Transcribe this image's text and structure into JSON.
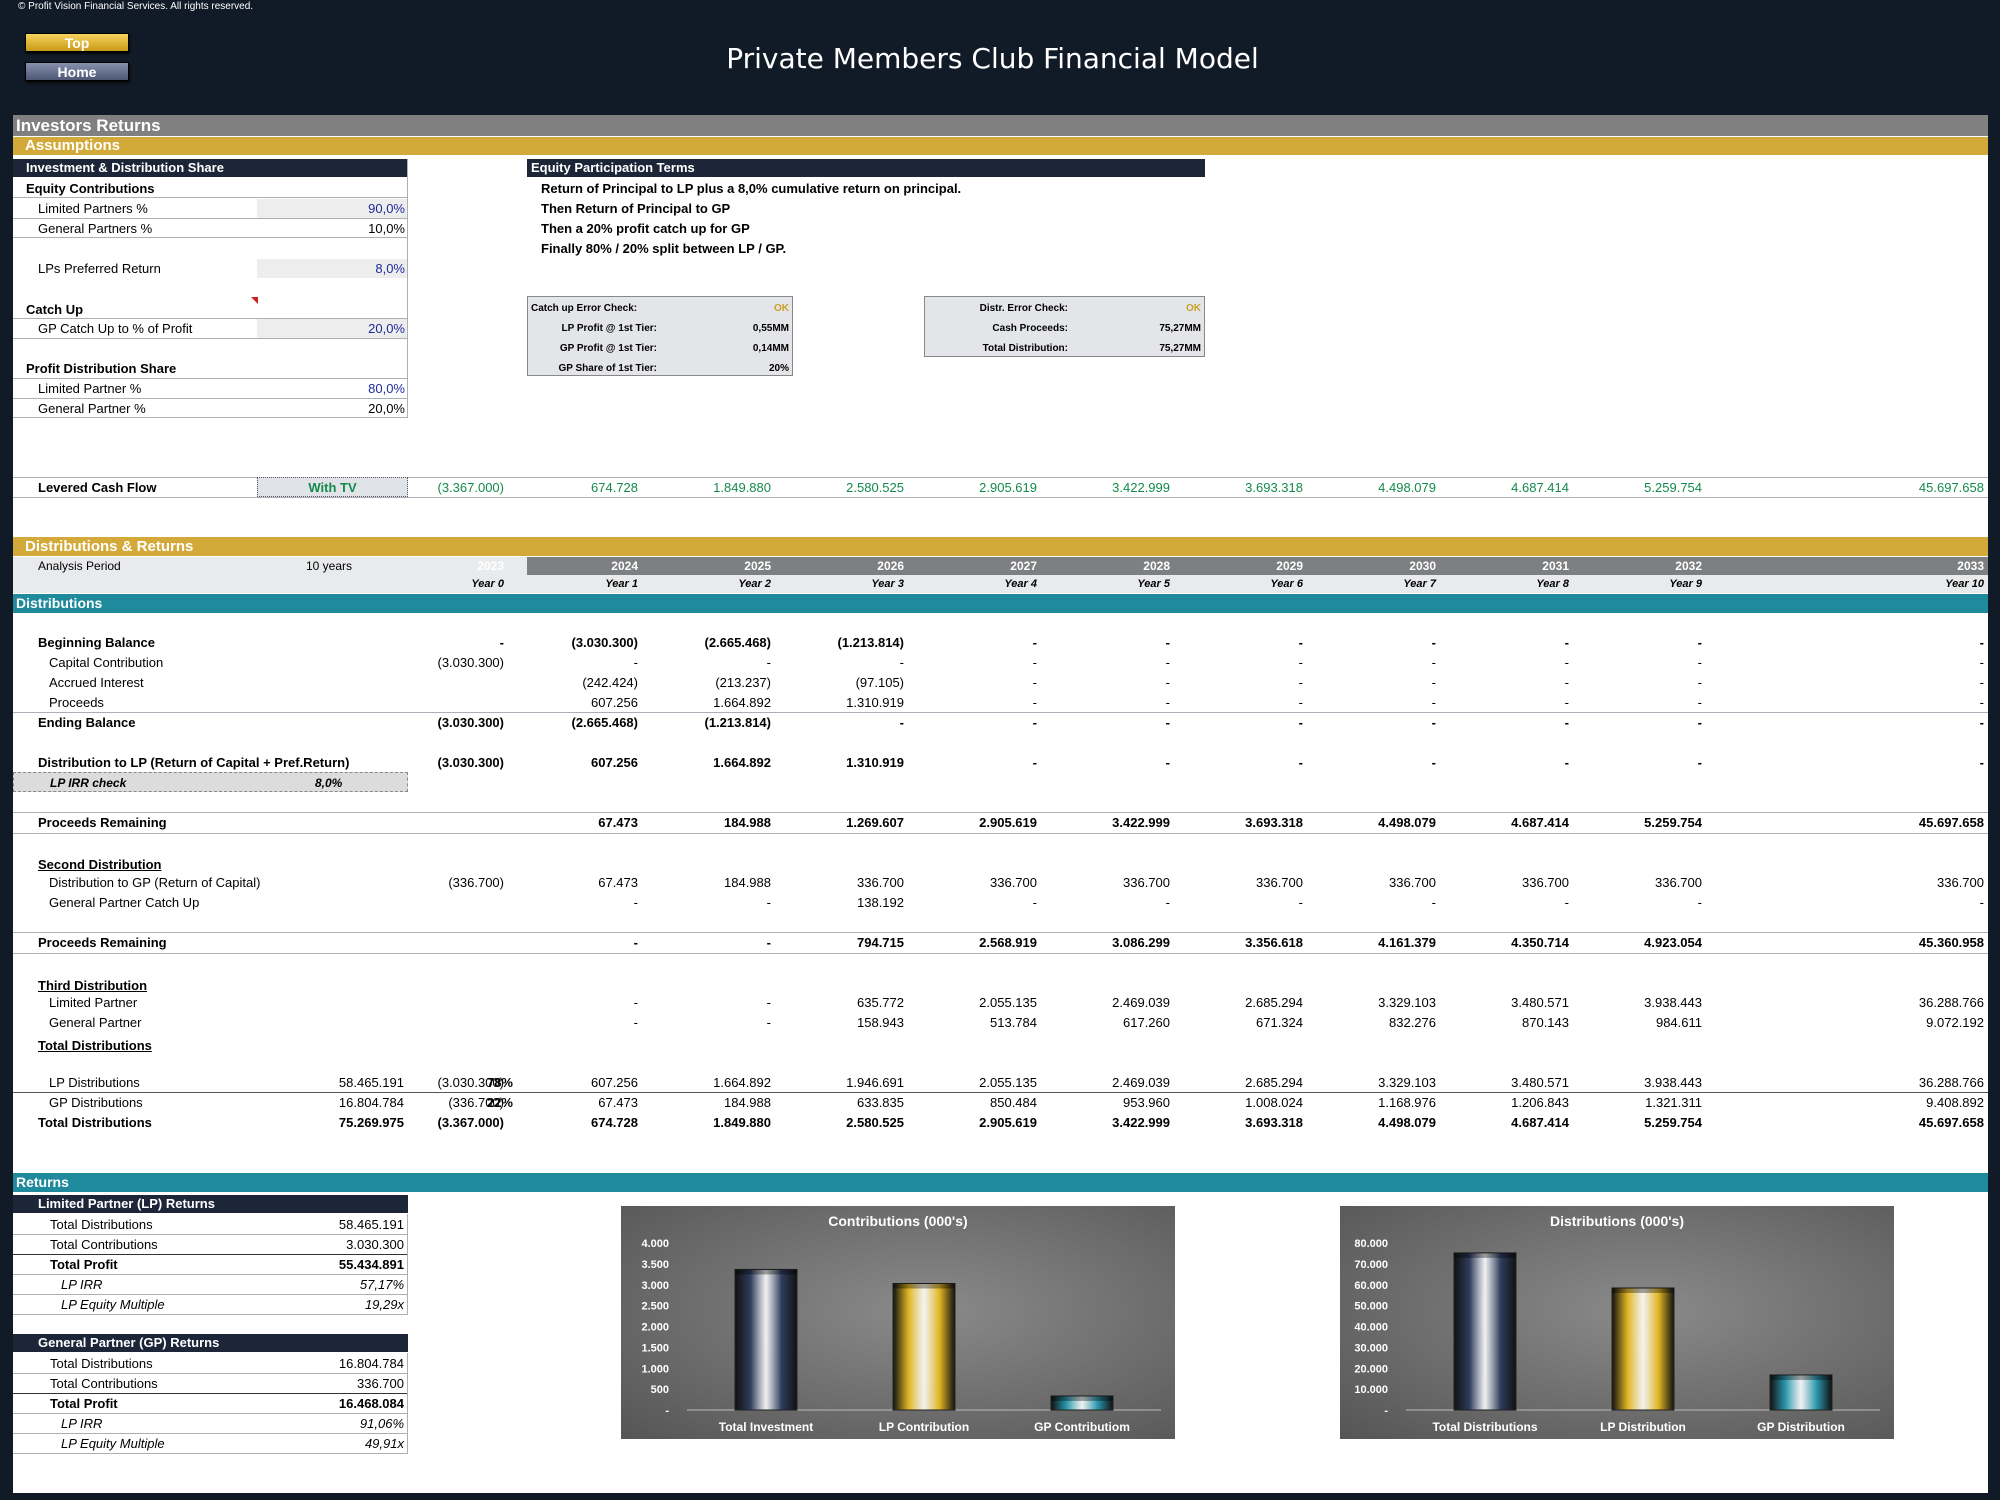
{
  "copyright": "© Profit Vision Financial Services. All rights reserved.",
  "nav": {
    "top": "Top",
    "home": "Home"
  },
  "title": "Private Members Club Financial Model",
  "sections": {
    "investors_returns": "Investors Returns",
    "assumptions": "Assumptions",
    "dist_returns": "Distributions & Returns",
    "distributions": "Distributions",
    "returns": "Returns"
  },
  "ids": {
    "header": "Investment & Distribution Share",
    "equity_contrib": "Equity Contributions",
    "lp_pct_label": "Limited Partners %",
    "lp_pct": "90,0%",
    "gp_pct_label": "General Partners %",
    "gp_pct": "10,0%",
    "pref_label": "LPs Preferred Return",
    "pref": "8,0%",
    "catch_up": "Catch Up",
    "gp_catch_label": "GP Catch Up to % of Profit",
    "gp_catch": "20,0%",
    "profit_share": "Profit Distribution Share",
    "lp_share_label": "Limited Partner %",
    "lp_share": "80,0%",
    "gp_share_label": "General Partner %",
    "gp_share": "20,0%"
  },
  "terms": {
    "header": "Equity Participation Terms",
    "lines": [
      "Return of Principal to LP plus a 8,0% cumulative return on principal.",
      "Then Return of Principal to GP",
      "Then a 20% profit catch up for GP",
      "Finally 80% / 20% split between LP / GP."
    ]
  },
  "catchbox": {
    "l1": "Catch up Error Check:",
    "v1": "OK",
    "l2": "LP Profit @ 1st Tier:",
    "v2": "0,55MM",
    "l3": "GP Profit @ 1st Tier:",
    "v3": "0,14MM",
    "l4": "GP Share of 1st Tier:",
    "v4": "20%"
  },
  "distbox": {
    "l1": "Distr. Error Check:",
    "v1": "OK",
    "l2": "Cash Proceeds:",
    "v2": "75,27MM",
    "l3": "Total Distribution:",
    "v3": "75,27MM"
  },
  "levered": {
    "label": "Levered Cash Flow",
    "mode": "With TV",
    "values": [
      "(3.367.000)",
      "674.728",
      "1.849.880",
      "2.580.525",
      "2.905.619",
      "3.422.999",
      "3.693.318",
      "4.498.079",
      "4.687.414",
      "5.259.754",
      "45.697.658"
    ]
  },
  "analysis": {
    "label": "Analysis Period",
    "value": "10 years"
  },
  "years": [
    "2023",
    "2024",
    "2025",
    "2026",
    "2027",
    "2028",
    "2029",
    "2030",
    "2031",
    "2032",
    "2033"
  ],
  "year_idx": [
    "Year 0",
    "Year 1",
    "Year 2",
    "Year 3",
    "Year 4",
    "Year 5",
    "Year 6",
    "Year 7",
    "Year 8",
    "Year 9",
    "Year 10"
  ],
  "rows": [
    {
      "label": "Beginning Balance",
      "bold": true,
      "indent": 0,
      "values": [
        "-",
        "(3.030.300)",
        "(2.665.468)",
        "(1.213.814)",
        "-",
        "-",
        "-",
        "-",
        "-",
        "-",
        "-"
      ]
    },
    {
      "label": "Capital Contribution",
      "indent": 1,
      "values": [
        "(3.030.300)",
        "-",
        "-",
        "-",
        "-",
        "-",
        "-",
        "-",
        "-",
        "-",
        "-"
      ]
    },
    {
      "label": "Accrued Interest",
      "indent": 1,
      "values": [
        "",
        "(242.424)",
        "(213.237)",
        "(97.105)",
        "-",
        "-",
        "-",
        "-",
        "-",
        "-",
        "-"
      ]
    },
    {
      "label": "Proceeds",
      "indent": 1,
      "values": [
        "",
        "607.256",
        "1.664.892",
        "1.310.919",
        "-",
        "-",
        "-",
        "-",
        "-",
        "-",
        "-"
      ]
    },
    {
      "label": "Ending Balance",
      "bold": true,
      "indent": 0,
      "values": [
        "(3.030.300)",
        "(2.665.468)",
        "(1.213.814)",
        "-",
        "-",
        "-",
        "-",
        "-",
        "-",
        "-",
        "-"
      ]
    },
    {
      "label": "Distribution to LP (Return of Capital + Pref.Return)",
      "bold": true,
      "indent": 0,
      "values": [
        "(3.030.300)",
        "607.256",
        "1.664.892",
        "1.310.919",
        "-",
        "-",
        "-",
        "-",
        "-",
        "-",
        "-"
      ]
    },
    {
      "label": "Proceeds Remaining",
      "bold": true,
      "indent": 0,
      "values": [
        "",
        "67.473",
        "184.988",
        "1.269.607",
        "2.905.619",
        "3.422.999",
        "3.693.318",
        "4.498.079",
        "4.687.414",
        "5.259.754",
        "45.697.658"
      ]
    },
    {
      "label": "Distribution to GP (Return of Capital)",
      "indent": 1,
      "values": [
        "(336.700)",
        "67.473",
        "184.988",
        "336.700",
        "336.700",
        "336.700",
        "336.700",
        "336.700",
        "336.700",
        "336.700",
        "336.700"
      ]
    },
    {
      "label": "General Partner Catch Up",
      "indent": 1,
      "values": [
        "",
        "-",
        "-",
        "138.192",
        "-",
        "-",
        "-",
        "-",
        "-",
        "-",
        "-"
      ]
    },
    {
      "label": "Proceeds Remaining",
      "bold": true,
      "indent": 0,
      "values": [
        "",
        "-",
        "-",
        "794.715",
        "2.568.919",
        "3.086.299",
        "3.356.618",
        "4.161.379",
        "4.350.714",
        "4.923.054",
        "45.360.958"
      ]
    },
    {
      "label": "Limited Partner",
      "indent": 1,
      "values": [
        "",
        "-",
        "-",
        "635.772",
        "2.055.135",
        "2.469.039",
        "2.685.294",
        "3.329.103",
        "3.480.571",
        "3.938.443",
        "36.288.766"
      ]
    },
    {
      "label": "General Partner",
      "indent": 1,
      "values": [
        "",
        "-",
        "-",
        "158.943",
        "513.784",
        "617.260",
        "671.324",
        "832.276",
        "870.143",
        "984.611",
        "9.072.192"
      ]
    },
    {
      "label": "LP Distributions",
      "indent": 1,
      "total": "58.465.191",
      "pct": "78%",
      "values": [
        "(3.030.300)",
        "607.256",
        "1.664.892",
        "1.946.691",
        "2.055.135",
        "2.469.039",
        "2.685.294",
        "3.329.103",
        "3.480.571",
        "3.938.443",
        "36.288.766"
      ]
    },
    {
      "label": "GP Distributions",
      "indent": 1,
      "total": "16.804.784",
      "pct": "22%",
      "values": [
        "(336.700)",
        "67.473",
        "184.988",
        "633.835",
        "850.484",
        "953.960",
        "1.008.024",
        "1.168.976",
        "1.206.843",
        "1.321.311",
        "9.408.892"
      ]
    },
    {
      "label": "Total Distributions",
      "bold": true,
      "indent": 0,
      "total": "75.269.975",
      "values": [
        "(3.367.000)",
        "674.728",
        "1.849.880",
        "2.580.525",
        "2.905.619",
        "3.422.999",
        "3.693.318",
        "4.498.079",
        "4.687.414",
        "5.259.754",
        "45.697.658"
      ]
    }
  ],
  "irr_check": {
    "label": "LP IRR check",
    "value": "8,0%"
  },
  "subheads": {
    "second": "Second Distribution",
    "third": "Third Distribution",
    "total": "Total Distributions"
  },
  "lp_returns": {
    "header": "Limited Partner (LP) Returns",
    "rows": [
      {
        "label": "Total Distributions",
        "value": "58.465.191"
      },
      {
        "label": "Total Contributions",
        "value": "3.030.300"
      },
      {
        "label": "Total Profit",
        "value": "55.434.891"
      },
      {
        "label": "LP IRR",
        "value": "57,17%"
      },
      {
        "label": "LP Equity Multiple",
        "value": "19,29x"
      }
    ]
  },
  "gp_returns": {
    "header": "General Partner (GP) Returns",
    "rows": [
      {
        "label": "Total Distributions",
        "value": "16.804.784"
      },
      {
        "label": "Total Contributions",
        "value": "336.700"
      },
      {
        "label": "Total Profit",
        "value": "16.468.084"
      },
      {
        "label": "LP IRR",
        "value": "91,06%"
      },
      {
        "label": "LP Equity Multiple",
        "value": "49,91x"
      }
    ]
  },
  "colors": {
    "navy": "#1c2638",
    "gold": "#d3aa3a",
    "teal": "#1f8a9c",
    "grey_band": "#808080"
  },
  "charts": [
    {
      "title": "Contributions (000's)",
      "categories": [
        "Total Investment",
        "LP Contribution",
        "GP Contributiom"
      ],
      "values": [
        3367,
        3030,
        337
      ],
      "ylim": [
        0,
        4000
      ],
      "ticks": [
        "-",
        "500",
        "1.000",
        "1.500",
        "2.000",
        "2.500",
        "3.000",
        "3.500",
        "4.000"
      ],
      "colors": [
        "#2e3d5c",
        "#e0b523",
        "#2a97ad"
      ]
    },
    {
      "title": "Distributions (000's)",
      "categories": [
        "Total Distributions",
        "LP Distribution",
        "GP Distribution"
      ],
      "values": [
        75270,
        58465,
        16805
      ],
      "ylim": [
        0,
        80000
      ],
      "ticks": [
        "-",
        "10.000",
        "20.000",
        "30.000",
        "40.000",
        "50.000",
        "60.000",
        "70.000",
        "80.000"
      ],
      "colors": [
        "#2e3d5c",
        "#e0b523",
        "#2a97ad"
      ]
    }
  ]
}
